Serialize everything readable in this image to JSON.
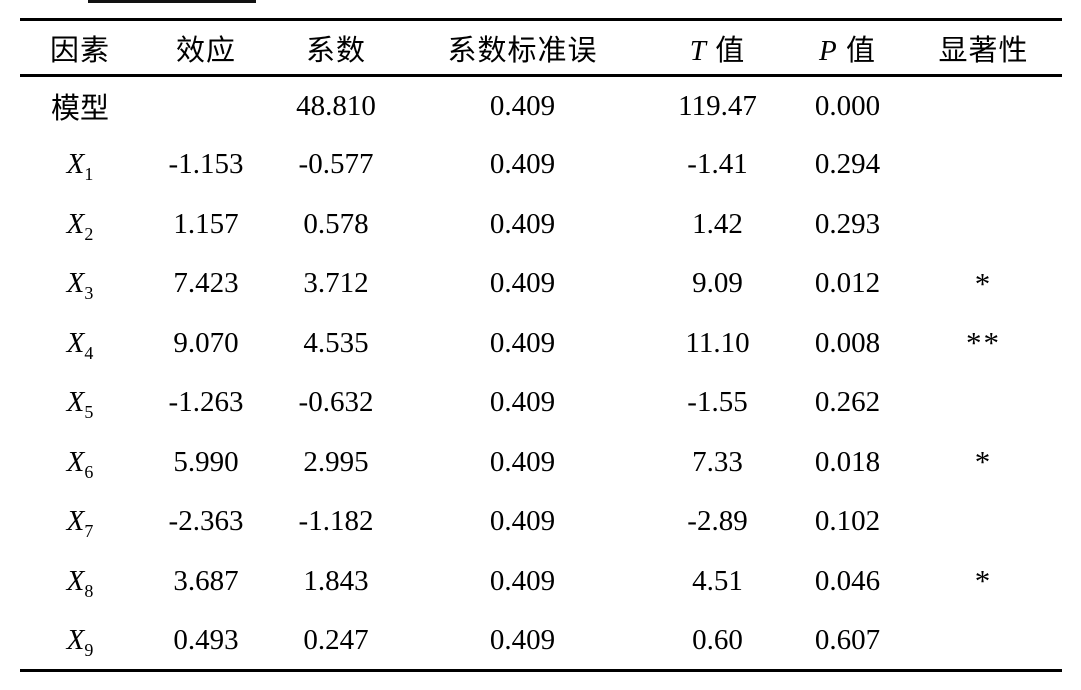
{
  "page": {
    "background": "#ffffff",
    "text_color": "#000000"
  },
  "table": {
    "headers": [
      {
        "text": "因素"
      },
      {
        "text": "效应"
      },
      {
        "text": "系数"
      },
      {
        "text": "系数标准误"
      },
      {
        "italic": "T",
        "text": "值"
      },
      {
        "italic": "P",
        "text": "值"
      },
      {
        "text": "显著性"
      }
    ],
    "column_keys": [
      "effect",
      "coefficient",
      "std_error",
      "t_value",
      "p_value",
      "significance"
    ],
    "rows": [
      {
        "factor": {
          "base": "模型",
          "sub": "",
          "italic": false
        },
        "effect": "",
        "coefficient": "48.810",
        "std_error": "0.409",
        "t_value": "119.47",
        "p_value": "0.000",
        "significance": ""
      },
      {
        "factor": {
          "base": "X",
          "sub": "1",
          "italic": true
        },
        "effect": "-1.153",
        "coefficient": "-0.577",
        "std_error": "0.409",
        "t_value": "-1.41",
        "p_value": "0.294",
        "significance": ""
      },
      {
        "factor": {
          "base": "X",
          "sub": "2",
          "italic": true
        },
        "effect": "1.157",
        "coefficient": "0.578",
        "std_error": "0.409",
        "t_value": "1.42",
        "p_value": "0.293",
        "significance": ""
      },
      {
        "factor": {
          "base": "X",
          "sub": "3",
          "italic": true
        },
        "effect": "7.423",
        "coefficient": "3.712",
        "std_error": "0.409",
        "t_value": "9.09",
        "p_value": "0.012",
        "significance": "*"
      },
      {
        "factor": {
          "base": "X",
          "sub": "4",
          "italic": true
        },
        "effect": "9.070",
        "coefficient": "4.535",
        "std_error": "0.409",
        "t_value": "11.10",
        "p_value": "0.008",
        "significance": "**"
      },
      {
        "factor": {
          "base": "X",
          "sub": "5",
          "italic": true
        },
        "effect": "-1.263",
        "coefficient": "-0.632",
        "std_error": "0.409",
        "t_value": "-1.55",
        "p_value": "0.262",
        "significance": ""
      },
      {
        "factor": {
          "base": "X",
          "sub": "6",
          "italic": true
        },
        "effect": "5.990",
        "coefficient": "2.995",
        "std_error": "0.409",
        "t_value": "7.33",
        "p_value": "0.018",
        "significance": "*"
      },
      {
        "factor": {
          "base": "X",
          "sub": "7",
          "italic": true
        },
        "effect": "-2.363",
        "coefficient": "-1.182",
        "std_error": "0.409",
        "t_value": "-2.89",
        "p_value": "0.102",
        "significance": ""
      },
      {
        "factor": {
          "base": "X",
          "sub": "8",
          "italic": true
        },
        "effect": "3.687",
        "coefficient": "1.843",
        "std_error": "0.409",
        "t_value": "4.51",
        "p_value": "0.046",
        "significance": "*"
      },
      {
        "factor": {
          "base": "X",
          "sub": "9",
          "italic": true
        },
        "effect": "0.493",
        "coefficient": "0.247",
        "std_error": "0.409",
        "t_value": "0.60",
        "p_value": "0.607",
        "significance": ""
      }
    ]
  }
}
